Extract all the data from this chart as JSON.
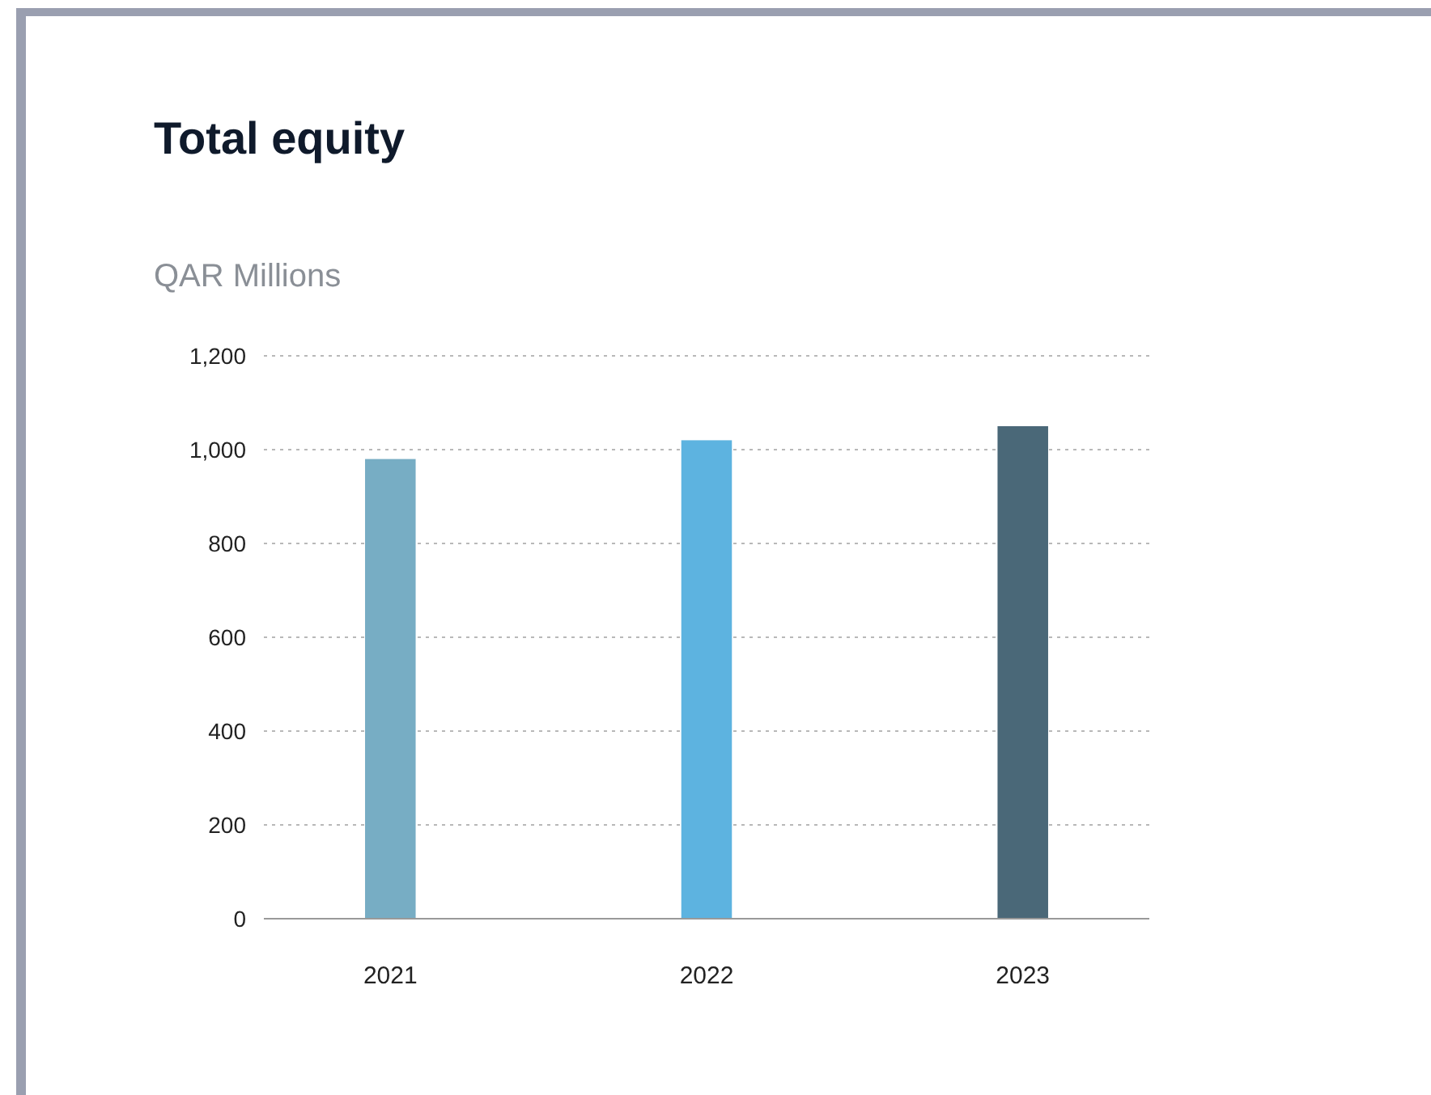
{
  "chart_data": {
    "type": "bar",
    "title": "Total equity",
    "subtitle": "QAR Millions",
    "categories": [
      "2021",
      "2022",
      "2023"
    ],
    "values": [
      980,
      1020,
      1050
    ],
    "colors": [
      "#77adc4",
      "#5db3e0",
      "#4a6878"
    ],
    "ylim": [
      0,
      1200
    ],
    "yticks": [
      0,
      200,
      400,
      600,
      800,
      {
        "value": 1000,
        "label": "1,000"
      },
      {
        "value": 1200,
        "label": "1,200"
      }
    ],
    "grid": "y"
  }
}
